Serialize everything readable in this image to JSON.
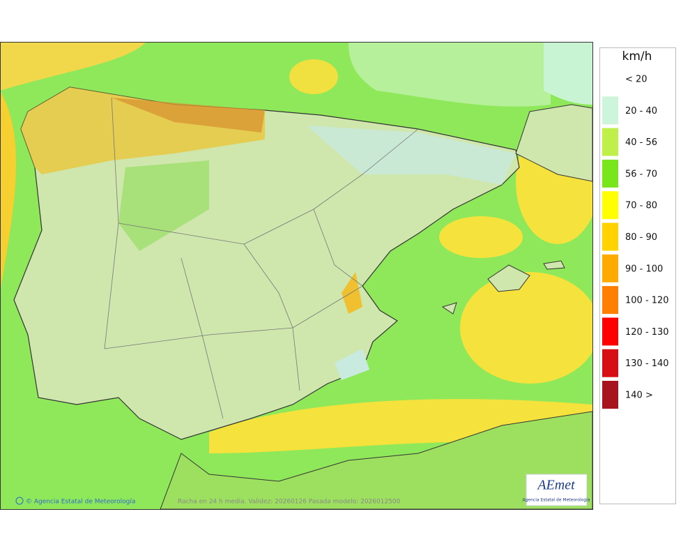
{
  "legend": {
    "title": "km/h",
    "items": [
      {
        "label": "< 20",
        "color": "#ffffff"
      },
      {
        "label": "20 - 40",
        "color": "#ccf5dc"
      },
      {
        "label": "40 - 56",
        "color": "#bff04a"
      },
      {
        "label": "56 - 70",
        "color": "#78e61a"
      },
      {
        "label": "70 - 80",
        "color": "#ffff00"
      },
      {
        "label": "80 - 90",
        "color": "#ffd200"
      },
      {
        "label": "90 - 100",
        "color": "#ffaa00"
      },
      {
        "label": "100 - 120",
        "color": "#ff8000"
      },
      {
        "label": "120 - 130",
        "color": "#ff0000"
      },
      {
        "label": "130 - 140",
        "color": "#d70f14"
      },
      {
        "label": "140 >",
        "color": "#a8141e"
      }
    ]
  },
  "footer": {
    "credit": "© Agencia Estatal de Meteorología",
    "caption": "Racha en 24 h media. Validez: 20260126 Pasada modelo: 2026012500"
  },
  "logo": {
    "name": "AEmet",
    "subtitle": "Agencia Estatal de Meteorología"
  }
}
